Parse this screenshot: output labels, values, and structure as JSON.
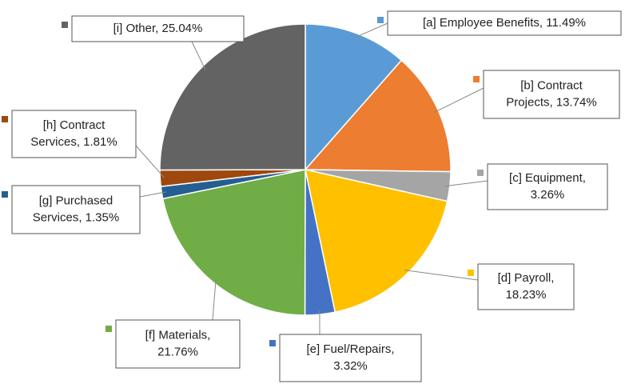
{
  "chart_data": {
    "type": "pie",
    "labels": [
      [
        "[a]  Employee Benefits, 11.49%"
      ],
      [
        "[b]  Contract",
        "Projects, 13.74%"
      ],
      [
        "[c]  Equipment,",
        "3.26%"
      ],
      [
        "[d]  Payroll,",
        "18.23%"
      ],
      [
        "[e]  Fuel/Repairs,",
        "3.32%"
      ],
      [
        "[f]  Materials,",
        "21.76%"
      ],
      [
        "[g]  Purchased",
        "Services, 1.35%"
      ],
      [
        "[h]  Contract",
        "Services, 1.81%"
      ],
      [
        "[i]  Other, 25.04%"
      ]
    ],
    "values": [
      11.49,
      13.74,
      3.26,
      18.23,
      3.32,
      21.76,
      1.35,
      1.81,
      25.04
    ],
    "colors": [
      "#5b9bd5",
      "#ed7d31",
      "#a5a5a5",
      "#ffc000",
      "#4472c4",
      "#70ad47",
      "#255e91",
      "#9e480e",
      "#636363"
    ]
  }
}
